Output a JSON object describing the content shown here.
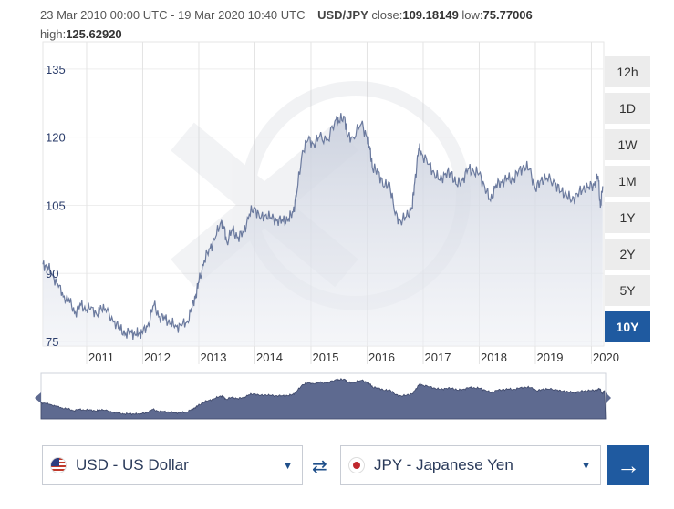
{
  "header": {
    "date_range": "23 Mar 2010 00:00 UTC - 19 Mar 2020 10:40 UTC",
    "pair": "USD/JPY",
    "close_label": "close:",
    "close_value": "109.18149",
    "low_label": "low:",
    "low_value": "75.77006",
    "high_label": "high:",
    "high_value": "125.62920"
  },
  "ranges": [
    "12h",
    "1D",
    "1W",
    "1M",
    "1Y",
    "2Y",
    "5Y",
    "10Y"
  ],
  "active_range": "10Y",
  "from_currency": {
    "label": "USD - US Dollar",
    "flag": "us-flag-icon"
  },
  "to_currency": {
    "label": "JPY - Japanese Yen",
    "flag": "jp-flag-icon"
  },
  "icons": {
    "swap": "swap-icon",
    "go": "arrow-right-icon",
    "caret": "caret-down-icon",
    "watermark": "xe-logo"
  },
  "colors": {
    "line": "#6b7a9e",
    "area": "#dfe3ec",
    "navigator_fill": "#5e6a90",
    "accent": "#1f5aa0"
  },
  "chart_data": {
    "type": "area",
    "series": [
      {
        "values": [
          [
            2010.22,
            92.0
          ],
          [
            2010.3,
            91.5
          ],
          [
            2010.4,
            89.5
          ],
          [
            2010.5,
            87.0
          ],
          [
            2010.6,
            85.0
          ],
          [
            2010.7,
            83.5
          ],
          [
            2010.8,
            81.5
          ],
          [
            2010.9,
            83.0
          ],
          [
            2011.0,
            82.0
          ],
          [
            2011.1,
            82.5
          ],
          [
            2011.2,
            80.5
          ],
          [
            2011.25,
            83.0
          ],
          [
            2011.35,
            81.5
          ],
          [
            2011.5,
            79.5
          ],
          [
            2011.6,
            77.5
          ],
          [
            2011.7,
            76.8
          ],
          [
            2011.8,
            77.0
          ],
          [
            2011.88,
            76.5
          ],
          [
            2011.95,
            77.0
          ],
          [
            2012.0,
            76.8
          ],
          [
            2012.1,
            79.0
          ],
          [
            2012.2,
            83.0
          ],
          [
            2012.3,
            80.5
          ],
          [
            2012.4,
            80.0
          ],
          [
            2012.5,
            79.0
          ],
          [
            2012.6,
            78.3
          ],
          [
            2012.7,
            78.5
          ],
          [
            2012.8,
            79.5
          ],
          [
            2012.88,
            82.5
          ],
          [
            2012.95,
            85.5
          ],
          [
            2013.0,
            88.0
          ],
          [
            2013.1,
            93.0
          ],
          [
            2013.2,
            95.5
          ],
          [
            2013.3,
            98.0
          ],
          [
            2013.4,
            101.5
          ],
          [
            2013.45,
            100.0
          ],
          [
            2013.5,
            97.0
          ],
          [
            2013.6,
            99.5
          ],
          [
            2013.7,
            98.0
          ],
          [
            2013.8,
            99.0
          ],
          [
            2013.9,
            103.0
          ],
          [
            2014.0,
            104.5
          ],
          [
            2014.1,
            102.0
          ],
          [
            2014.2,
            103.0
          ],
          [
            2014.3,
            102.0
          ],
          [
            2014.4,
            101.8
          ],
          [
            2014.5,
            101.5
          ],
          [
            2014.6,
            102.0
          ],
          [
            2014.68,
            103.5
          ],
          [
            2014.75,
            108.0
          ],
          [
            2014.85,
            117.0
          ],
          [
            2014.95,
            119.5
          ],
          [
            2015.05,
            118.5
          ],
          [
            2015.15,
            120.0
          ],
          [
            2015.3,
            119.5
          ],
          [
            2015.45,
            124.0
          ],
          [
            2015.5,
            123.5
          ],
          [
            2015.6,
            124.5
          ],
          [
            2015.65,
            120.0
          ],
          [
            2015.75,
            120.0
          ],
          [
            2015.9,
            123.0
          ],
          [
            2016.0,
            120.0
          ],
          [
            2016.05,
            117.5
          ],
          [
            2016.1,
            113.0
          ],
          [
            2016.2,
            112.5
          ],
          [
            2016.3,
            109.0
          ],
          [
            2016.4,
            110.0
          ],
          [
            2016.5,
            103.0
          ],
          [
            2016.6,
            101.5
          ],
          [
            2016.7,
            102.5
          ],
          [
            2016.8,
            104.5
          ],
          [
            2016.85,
            110.0
          ],
          [
            2016.92,
            117.5
          ],
          [
            2016.97,
            116.5
          ],
          [
            2017.1,
            114.0
          ],
          [
            2017.2,
            112.0
          ],
          [
            2017.3,
            110.5
          ],
          [
            2017.4,
            112.0
          ],
          [
            2017.5,
            112.0
          ],
          [
            2017.6,
            109.5
          ],
          [
            2017.7,
            110.5
          ],
          [
            2017.8,
            113.0
          ],
          [
            2017.9,
            112.5
          ],
          [
            2018.0,
            112.0
          ],
          [
            2018.1,
            109.0
          ],
          [
            2018.2,
            106.0
          ],
          [
            2018.3,
            109.5
          ],
          [
            2018.4,
            110.0
          ],
          [
            2018.5,
            111.0
          ],
          [
            2018.6,
            110.5
          ],
          [
            2018.7,
            112.5
          ],
          [
            2018.8,
            113.5
          ],
          [
            2018.9,
            113.0
          ],
          [
            2019.0,
            108.5
          ],
          [
            2019.1,
            110.5
          ],
          [
            2019.2,
            111.0
          ],
          [
            2019.35,
            110.0
          ],
          [
            2019.45,
            108.0
          ],
          [
            2019.55,
            107.5
          ],
          [
            2019.65,
            106.0
          ],
          [
            2019.75,
            107.5
          ],
          [
            2019.85,
            108.5
          ],
          [
            2019.95,
            109.0
          ],
          [
            2020.05,
            109.5
          ],
          [
            2020.12,
            111.5
          ],
          [
            2020.16,
            104.5
          ],
          [
            2020.2,
            109.2
          ]
        ]
      }
    ],
    "x_ticks": [
      "2011",
      "2012",
      "2013",
      "2014",
      "2015",
      "2016",
      "2017",
      "2018",
      "2019",
      "2020"
    ],
    "y_ticks": [
      75,
      90,
      105,
      120,
      135
    ],
    "xlim": [
      2010.22,
      2020.22
    ],
    "ylim": [
      74,
      141
    ],
    "grid": true,
    "legend": false
  }
}
